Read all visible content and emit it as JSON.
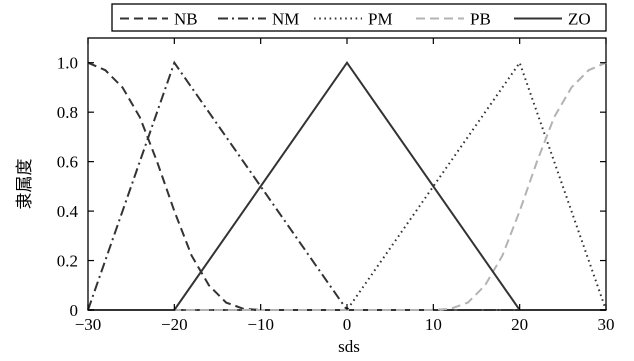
{
  "chart_data": {
    "type": "line",
    "xlabel": "sds",
    "ylabel": "隶属度",
    "xlim": [
      -30,
      30
    ],
    "ylim": [
      0,
      1.1
    ],
    "xticks": [
      -30,
      -20,
      -10,
      0,
      10,
      20,
      30
    ],
    "xtick_labels": [
      "−30",
      "−20",
      "−10",
      "0",
      "10",
      "20",
      "30"
    ],
    "yticks": [
      0,
      0.2,
      0.4,
      0.6,
      0.8,
      1.0
    ],
    "ytick_labels": [
      "0",
      "0.2",
      "0.4",
      "0.6",
      "0.8",
      "1.0"
    ],
    "grid": false,
    "legend_position": "top",
    "series": [
      {
        "name": "NB",
        "style": "dashed",
        "color": "#333333",
        "x": [
          -30,
          -28,
          -26,
          -24,
          -22,
          -20,
          -18,
          -16,
          -14,
          -12,
          -10,
          30
        ],
        "y": [
          1.0,
          0.97,
          0.9,
          0.78,
          0.6,
          0.4,
          0.22,
          0.1,
          0.03,
          0.005,
          0,
          0
        ]
      },
      {
        "name": "NM",
        "style": "dashdot",
        "color": "#333333",
        "x": [
          -30,
          -20,
          0,
          30
        ],
        "y": [
          0,
          1,
          0,
          0
        ]
      },
      {
        "name": "PM",
        "style": "dotted",
        "color": "#333333",
        "x": [
          -30,
          0,
          20,
          30
        ],
        "y": [
          0,
          0,
          1,
          0
        ]
      },
      {
        "name": "PB",
        "style": "dashed",
        "color": "#b3b3b3",
        "x": [
          -30,
          10,
          12,
          14,
          16,
          18,
          20,
          22,
          24,
          26,
          28,
          30
        ],
        "y": [
          0,
          0,
          0.005,
          0.03,
          0.1,
          0.22,
          0.4,
          0.6,
          0.78,
          0.9,
          0.97,
          1.0
        ]
      },
      {
        "name": "ZO",
        "style": "solid",
        "color": "#333333",
        "x": [
          -30,
          -20,
          0,
          20,
          30
        ],
        "y": [
          0,
          0,
          1,
          0,
          0
        ]
      }
    ]
  }
}
